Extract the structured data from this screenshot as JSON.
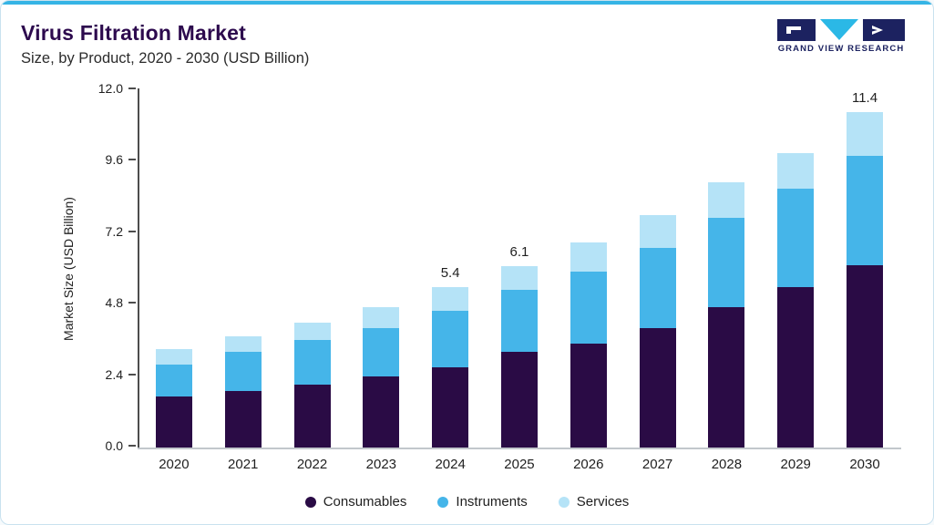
{
  "header": {
    "title": "Virus Filtration Market",
    "subtitle": "Size, by Product, 2020 - 2030 (USD Billion)",
    "logo_text": "GRAND VIEW RESEARCH"
  },
  "theme": {
    "accent_line": "#35b4e5",
    "title_color": "#2d0a4e",
    "logo_navy": "#1c2260",
    "logo_cyan": "#2bb8e6"
  },
  "chart_data": {
    "type": "bar",
    "stacked": true,
    "title": "Virus Filtration Market Size, by Product, 2020 - 2030 (USD Billion)",
    "xlabel": "",
    "ylabel": "Market Size (USD Billion)",
    "ylim": [
      0,
      12
    ],
    "yticks": [
      0.0,
      2.4,
      4.8,
      7.2,
      9.6,
      12.0
    ],
    "grid": false,
    "legend_position": "bottom",
    "categories": [
      "2020",
      "2021",
      "2022",
      "2023",
      "2024",
      "2025",
      "2026",
      "2027",
      "2028",
      "2029",
      "2030"
    ],
    "series": [
      {
        "name": "Consumables",
        "color": "#2a0b45",
        "values": [
          1.7,
          1.9,
          2.1,
          2.4,
          2.7,
          3.2,
          3.5,
          4.0,
          4.7,
          5.4,
          6.2
        ]
      },
      {
        "name": "Instruments",
        "color": "#45b5e9",
        "values": [
          1.1,
          1.3,
          1.5,
          1.6,
          1.9,
          2.1,
          2.4,
          2.7,
          3.0,
          3.3,
          3.7
        ]
      },
      {
        "name": "Services",
        "color": "#b5e3f7",
        "values": [
          0.5,
          0.55,
          0.6,
          0.7,
          0.8,
          0.8,
          1.0,
          1.1,
          1.2,
          1.2,
          1.5
        ]
      }
    ],
    "total_labels": {
      "2024": "5.4",
      "2025": "6.1",
      "2030": "11.4"
    }
  }
}
